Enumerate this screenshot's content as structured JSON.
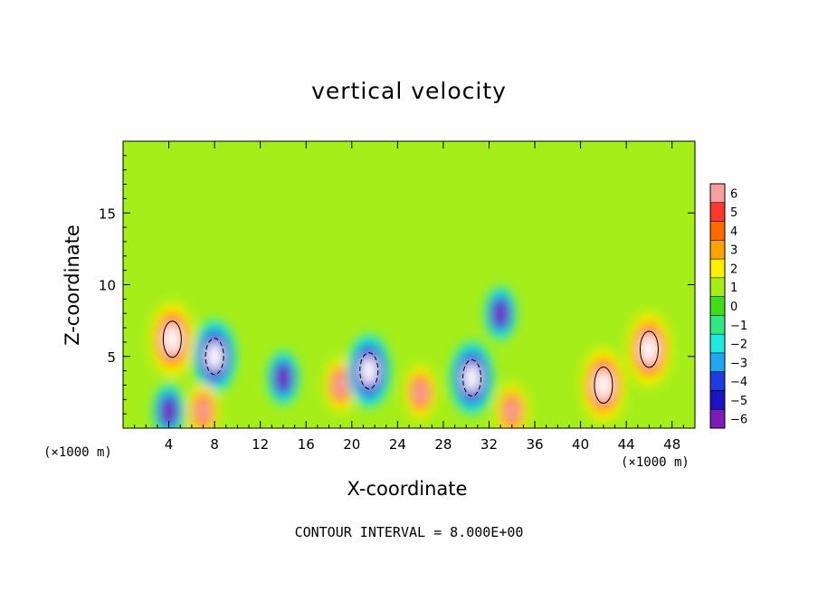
{
  "chart_data": {
    "type": "heatmap",
    "title": "vertical velocity",
    "xlabel": "X-coordinate",
    "ylabel": "Z-coordinate",
    "x_unit_label": "(×1000 m)",
    "xlim": [
      0,
      50
    ],
    "ylim": [
      0,
      20
    ],
    "x_ticks": [
      4,
      8,
      12,
      16,
      20,
      24,
      28,
      32,
      36,
      40,
      44,
      48
    ],
    "y_ticks": [
      5,
      10,
      15
    ],
    "colorbar": {
      "levels": [
        6,
        5,
        4,
        3,
        2,
        1,
        0,
        -1,
        -2,
        -3,
        -4,
        -5,
        -6
      ],
      "colors": [
        "#f7a0a0",
        "#f83a2e",
        "#ff6a00",
        "#ffa300",
        "#fff000",
        "#a6ee1a",
        "#3fdc1a",
        "#32e884",
        "#21e8e0",
        "#21a6f0",
        "#1f3ddc",
        "#1c12c2",
        "#7a1cb8"
      ]
    },
    "footer": "CONTOUR INTERVAL = 8.000E+00",
    "contour_interval": 8.0,
    "features": [
      {
        "x": 4.3,
        "z": 6.2,
        "w": 10
      },
      {
        "x": 8.0,
        "z": 5.0,
        "w": -8
      },
      {
        "x": 14.0,
        "z": 3.5,
        "w": -6
      },
      {
        "x": 19.0,
        "z": 3.0,
        "w": 6
      },
      {
        "x": 21.5,
        "z": 4.0,
        "w": -8
      },
      {
        "x": 26.0,
        "z": 2.5,
        "w": 6
      },
      {
        "x": 30.5,
        "z": 3.5,
        "w": -9
      },
      {
        "x": 33.0,
        "z": 8.0,
        "w": -5
      },
      {
        "x": 42.0,
        "z": 3.0,
        "w": 9
      },
      {
        "x": 46.0,
        "z": 5.5,
        "w": 10
      },
      {
        "x": 4.0,
        "z": 1.2,
        "w": -5
      },
      {
        "x": 7.0,
        "z": 1.2,
        "w": 5
      },
      {
        "x": 34.0,
        "z": 1.2,
        "w": 5
      }
    ]
  }
}
